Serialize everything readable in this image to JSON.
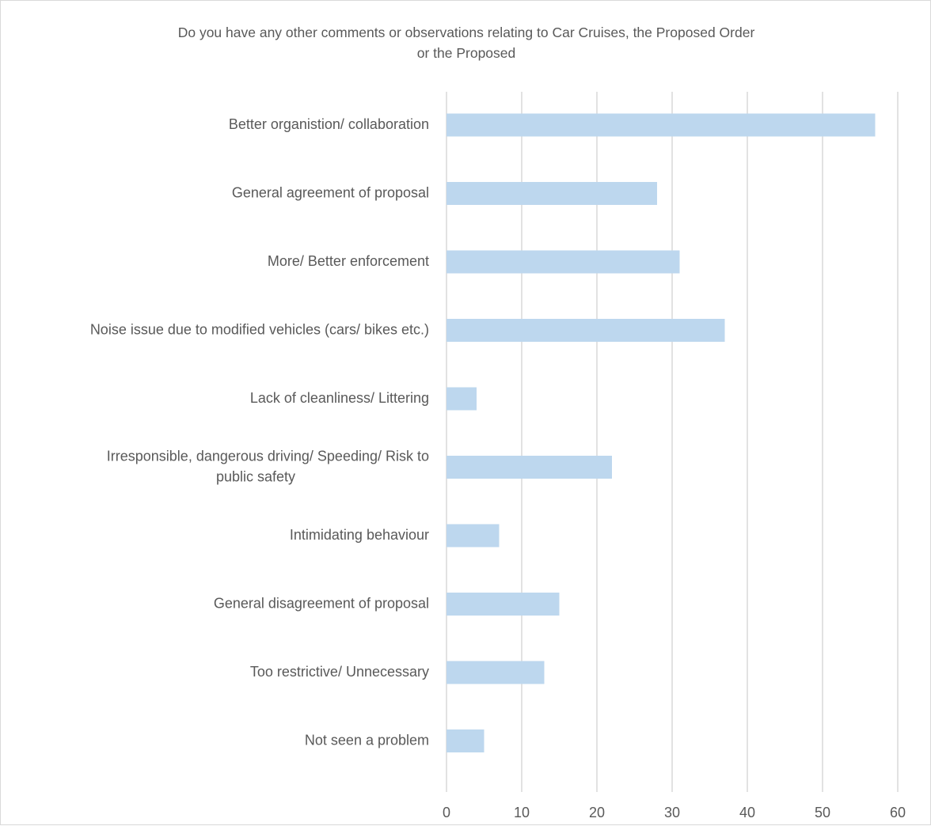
{
  "chart_data": {
    "type": "bar",
    "orientation": "horizontal",
    "title_lines": [
      "Do you have any other comments or observations relating to Car Cruises, the Proposed Order",
      "or the Proposed"
    ],
    "categories": [
      [
        "Better organistion/ collaboration"
      ],
      [
        "General agreement of proposal"
      ],
      [
        "More/ Better enforcement"
      ],
      [
        "Noise issue due to modified vehicles (cars/ bikes etc.)"
      ],
      [
        "Lack of cleanliness/ Littering"
      ],
      [
        "Irresponsible, dangerous driving/ Speeding/ Risk to",
        "public safety"
      ],
      [
        "Intimidating behaviour"
      ],
      [
        "General disagreement of proposal"
      ],
      [
        "Too restrictive/ Unnecessary"
      ],
      [
        "Not seen a problem"
      ]
    ],
    "values": [
      57,
      28,
      31,
      37,
      4,
      22,
      7,
      15,
      13,
      5
    ],
    "xlim": [
      0,
      60
    ],
    "xticks": [
      0,
      10,
      20,
      30,
      40,
      50,
      60
    ],
    "grid": "vertical",
    "legend": "none",
    "colors": {
      "bar": "#bdd7ee",
      "grid": "#d9d9d9",
      "text": "#595959"
    }
  }
}
